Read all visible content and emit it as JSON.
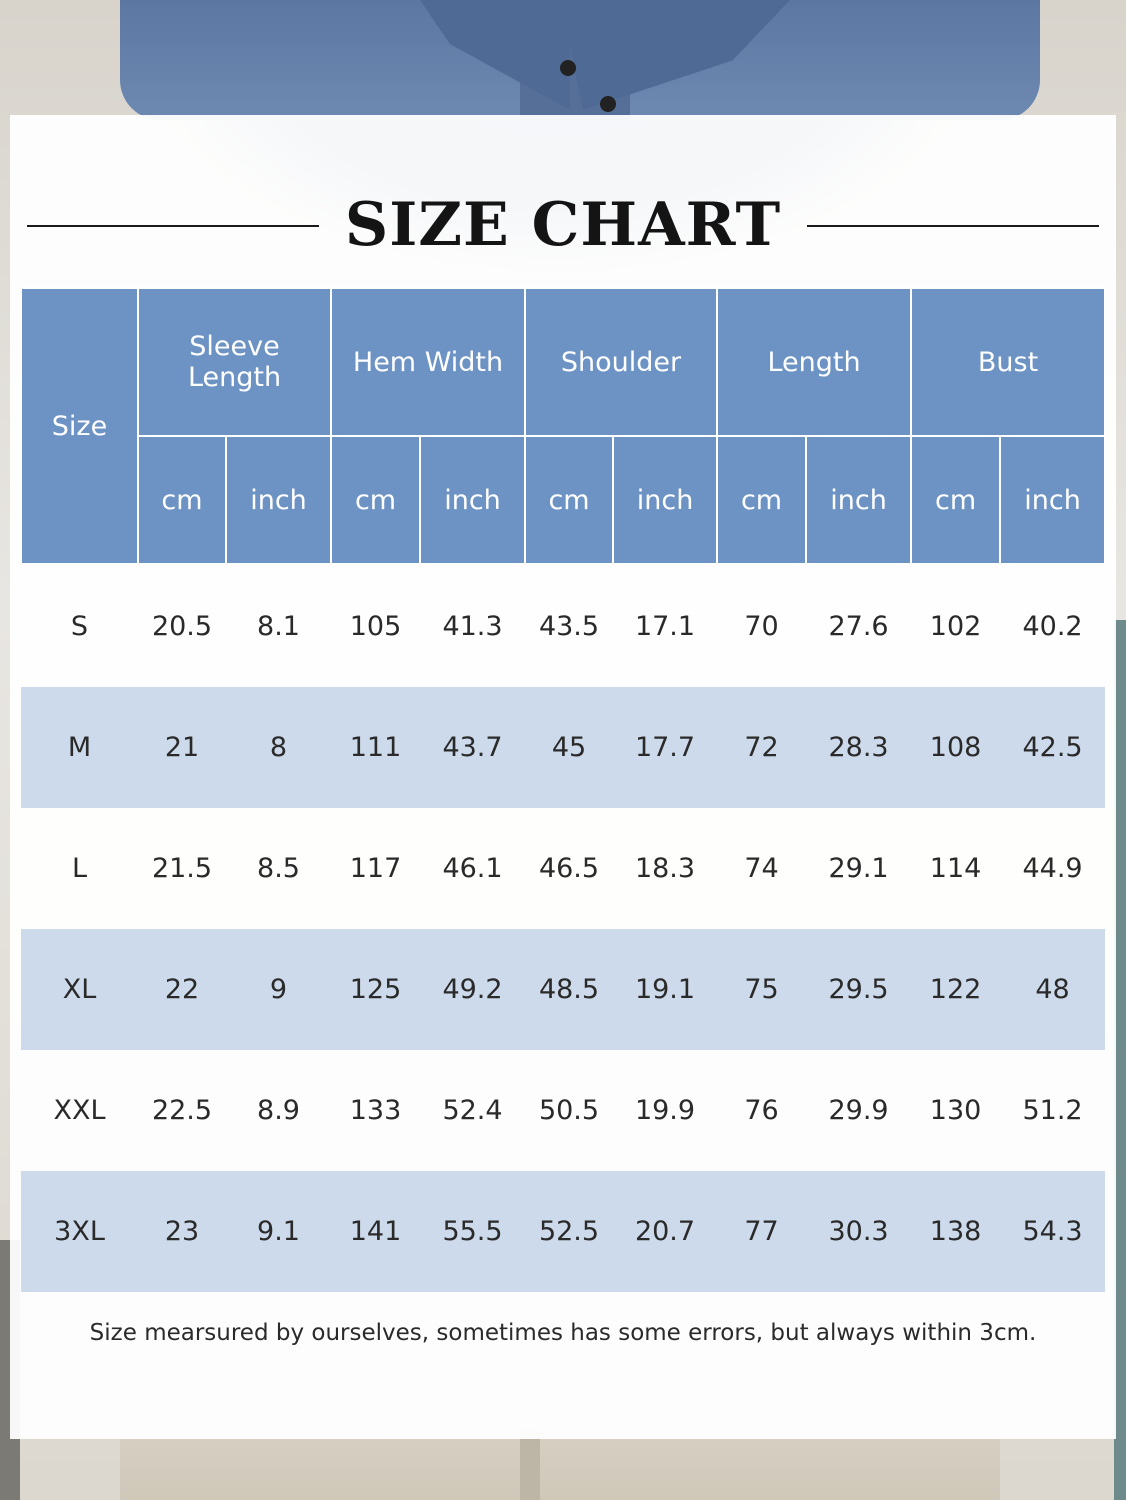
{
  "title": "SIZE CHART",
  "header": {
    "size": "Size",
    "groups": [
      "Sleeve Length",
      "Hem Width",
      "Shoulder",
      "Length",
      "Bust"
    ],
    "units": [
      "cm",
      "inch"
    ]
  },
  "rows": [
    {
      "size": "S",
      "values": [
        "20.5",
        "8.1",
        "105",
        "41.3",
        "43.5",
        "17.1",
        "70",
        "27.6",
        "102",
        "40.2"
      ]
    },
    {
      "size": "M",
      "values": [
        "21",
        "8",
        "111",
        "43.7",
        "45",
        "17.7",
        "72",
        "28.3",
        "108",
        "42.5"
      ]
    },
    {
      "size": "L",
      "values": [
        "21.5",
        "8.5",
        "117",
        "46.1",
        "46.5",
        "18.3",
        "74",
        "29.1",
        "114",
        "44.9"
      ]
    },
    {
      "size": "XL",
      "values": [
        "22",
        "9",
        "125",
        "49.2",
        "48.5",
        "19.1",
        "75",
        "29.5",
        "122",
        "48"
      ]
    },
    {
      "size": "XXL",
      "values": [
        "22.5",
        "8.9",
        "133",
        "52.4",
        "50.5",
        "19.9",
        "76",
        "29.9",
        "130",
        "51.2"
      ]
    },
    {
      "size": "3XL",
      "values": [
        "23",
        "9.1",
        "141",
        "55.5",
        "52.5",
        "20.7",
        "77",
        "30.3",
        "138",
        "54.3"
      ]
    }
  ],
  "note": "Size mearsured by ourselves, sometimes has some errors, but always within 3cm.",
  "colors": {
    "header": "#6c93c4",
    "stripe": "#c4d4e8",
    "title": "#141414"
  }
}
